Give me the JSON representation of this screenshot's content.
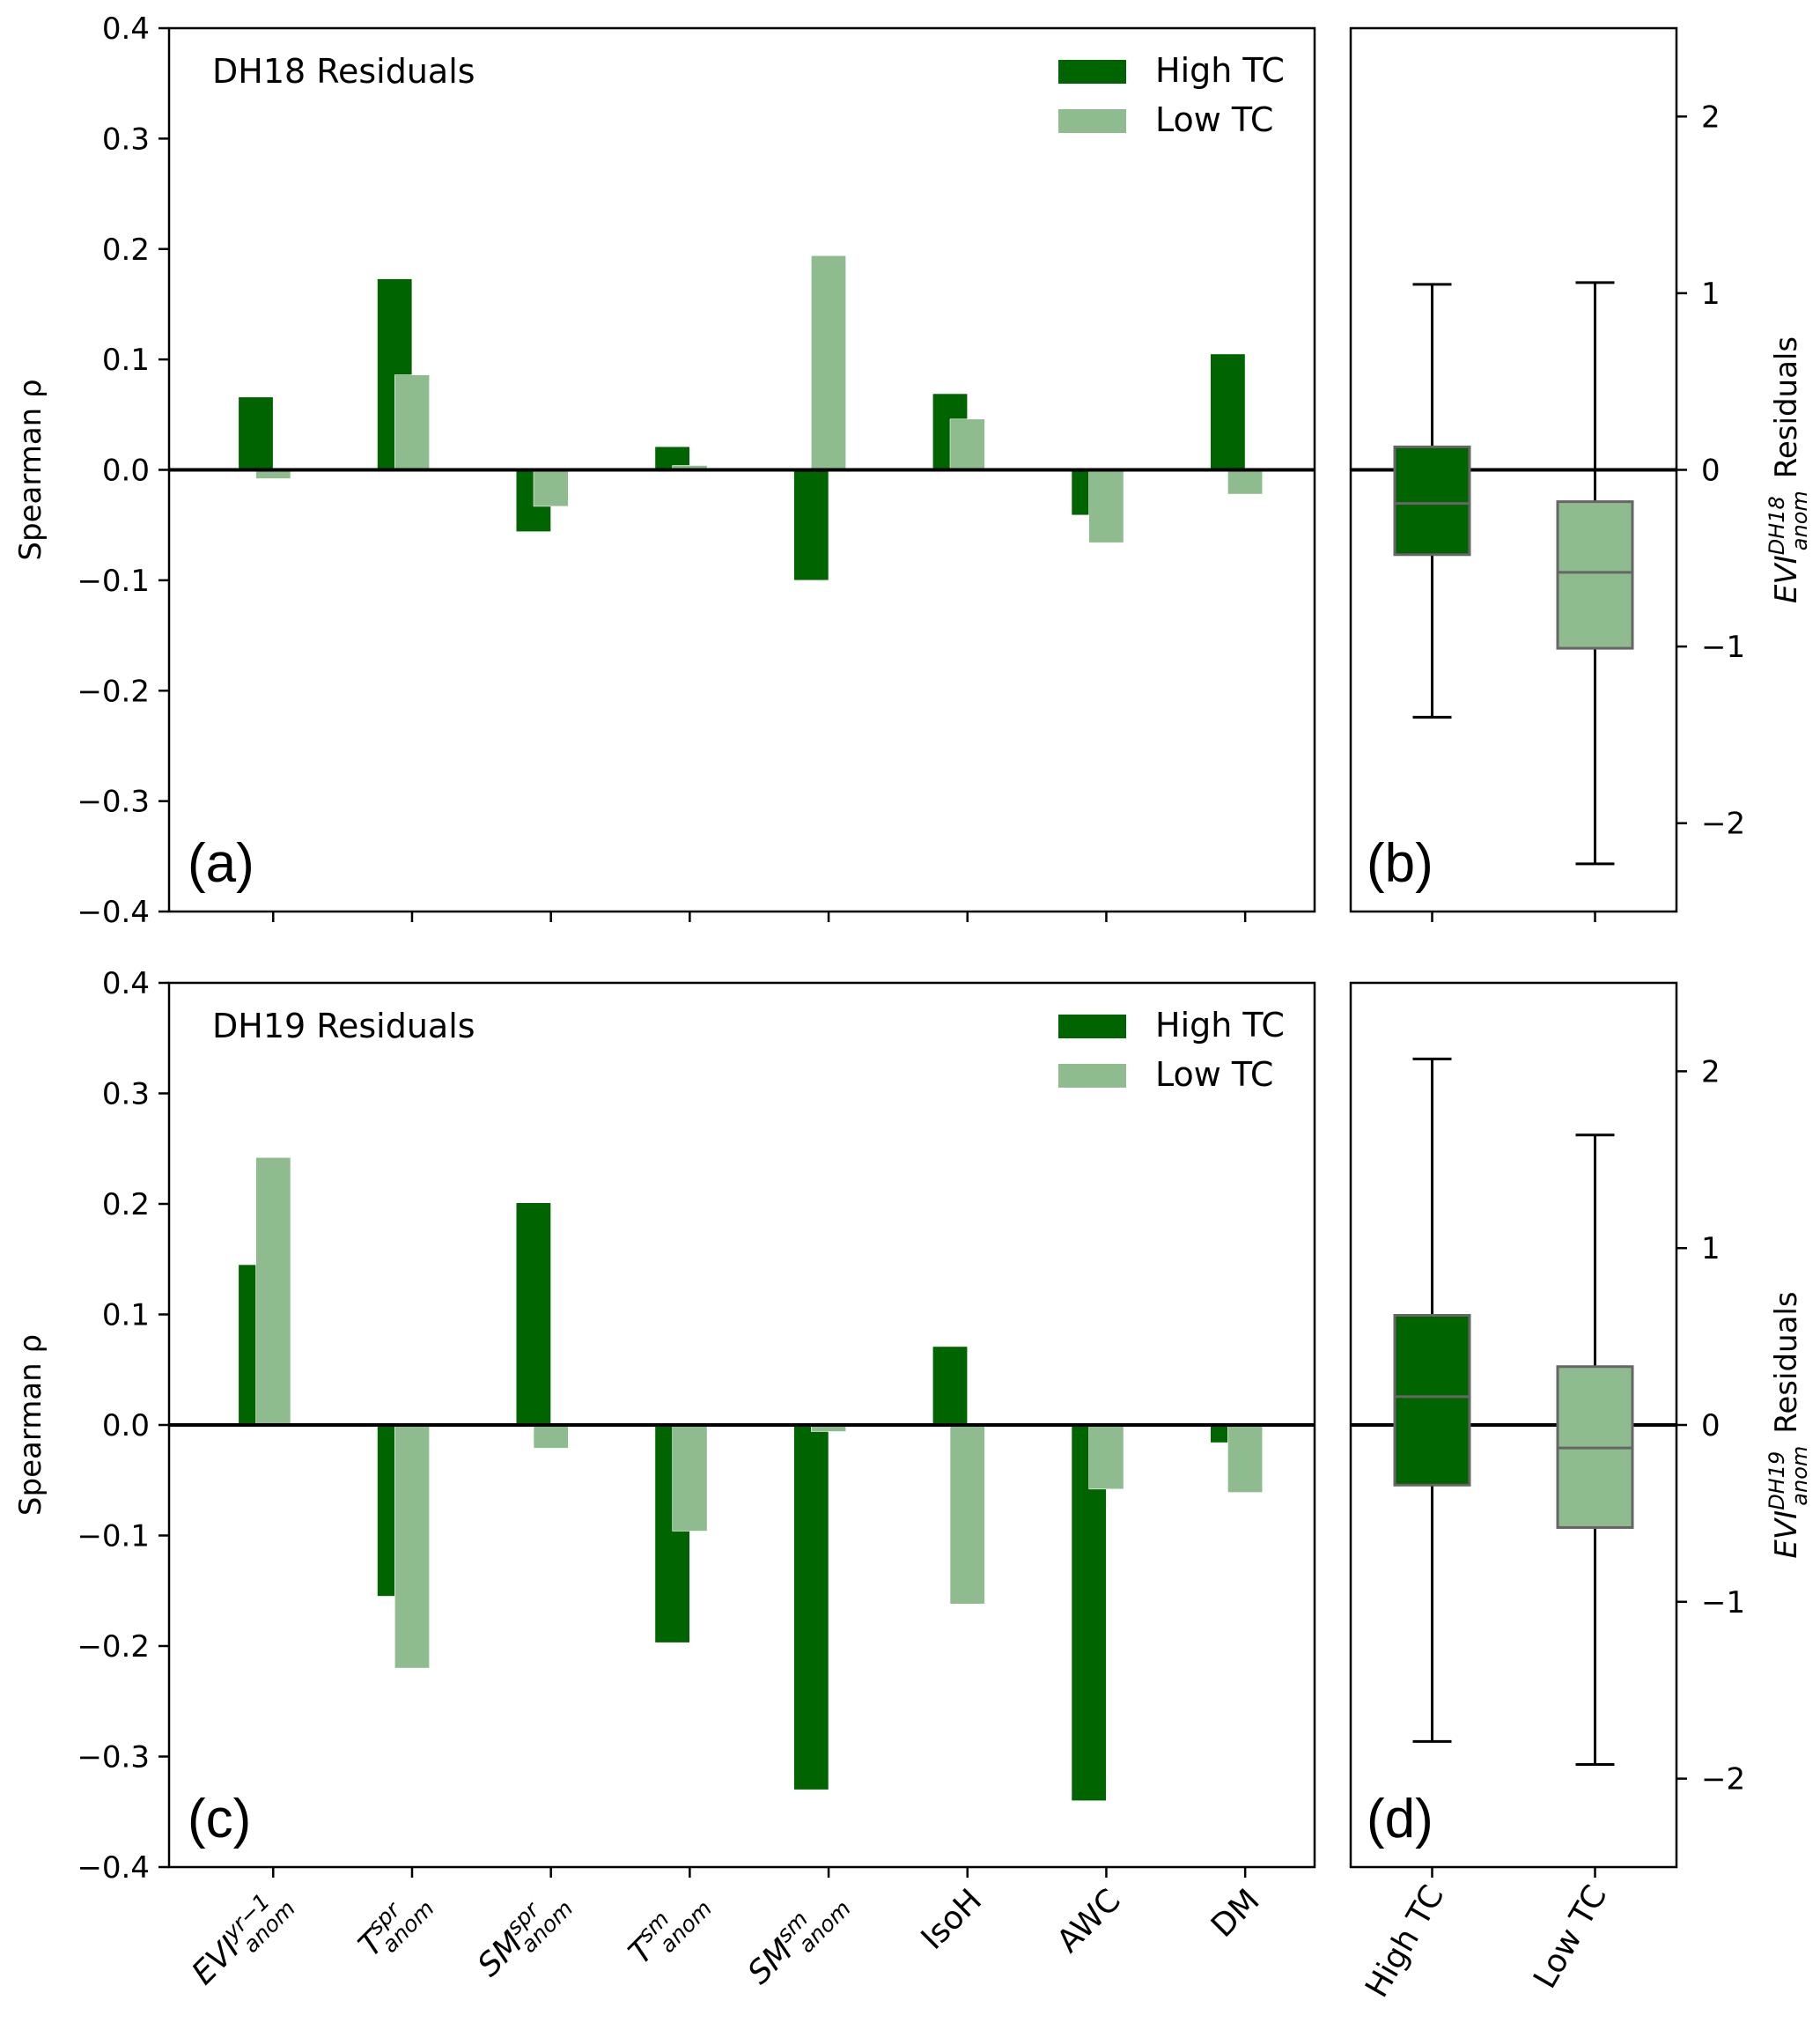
{
  "chart_data": [
    {
      "id": "a",
      "type": "bar",
      "panel_label": "(a)",
      "annotation": "DH18 Residuals",
      "ylabel": "Spearman ρ",
      "ylim": [
        -0.4,
        0.4
      ],
      "yticks": [
        -0.4,
        -0.3,
        -0.2,
        -0.1,
        0.0,
        0.1,
        0.2,
        0.3,
        0.4
      ],
      "ytick_labels": [
        "−0.4",
        "−0.3",
        "−0.2",
        "−0.1",
        "0.0",
        "0.1",
        "0.2",
        "0.3",
        "0.4"
      ],
      "categories": [
        "EVI_anom^yr−1",
        "T_anom^spr",
        "SM_anom^spr",
        "T_anom^sm",
        "SM_anom^sm",
        "IsoH",
        "AWC",
        "DM"
      ],
      "series": [
        {
          "name": "High TC",
          "color": "#006400",
          "values": [
            0.066,
            0.173,
            -0.056,
            0.021,
            -0.1,
            0.069,
            -0.041,
            0.105
          ]
        },
        {
          "name": "Low TC",
          "color": "#8fbc8f",
          "values": [
            -0.008,
            0.086,
            -0.033,
            0.004,
            0.194,
            0.046,
            -0.066,
            -0.022
          ]
        }
      ],
      "legend": {
        "position": "top-right",
        "entries": [
          "High TC",
          "Low TC"
        ]
      },
      "zero_line": true,
      "grid": false
    },
    {
      "id": "b",
      "type": "box",
      "panel_label": "(b)",
      "ylabel_main": "EVI",
      "ylabel_sup": "DH18",
      "ylabel_sub": "anom",
      "ylabel_tail": "Residuals",
      "ylim": [
        -2.5,
        2.5
      ],
      "yticks": [
        -2,
        -1,
        0,
        1,
        2
      ],
      "ytick_labels": [
        "−2",
        "−1",
        "0",
        "1",
        "2"
      ],
      "categories": [
        "High TC",
        "Low TC"
      ],
      "boxes": [
        {
          "name": "High TC",
          "color": "#006400",
          "whisker_low": -1.4,
          "q1": -0.48,
          "median": -0.19,
          "q3": 0.13,
          "whisker_high": 1.05
        },
        {
          "name": "Low TC",
          "color": "#8fbc8f",
          "whisker_low": -2.23,
          "q1": -1.01,
          "median": -0.58,
          "q3": -0.18,
          "whisker_high": 1.06
        }
      ],
      "zero_line": true
    },
    {
      "id": "c",
      "type": "bar",
      "panel_label": "(c)",
      "annotation": "DH19 Residuals",
      "ylabel": "Spearman ρ",
      "ylim": [
        -0.4,
        0.4
      ],
      "yticks": [
        -0.4,
        -0.3,
        -0.2,
        -0.1,
        0.0,
        0.1,
        0.2,
        0.3,
        0.4
      ],
      "ytick_labels": [
        "−0.4",
        "−0.3",
        "−0.2",
        "−0.1",
        "0.0",
        "0.1",
        "0.2",
        "0.3",
        "0.4"
      ],
      "categories": [
        "EVI_anom^yr−1",
        "T_anom^spr",
        "SM_anom^spr",
        "T_anom^sm",
        "SM_anom^sm",
        "IsoH",
        "AWC",
        "DM"
      ],
      "series": [
        {
          "name": "High TC",
          "color": "#006400",
          "values": [
            0.145,
            -0.155,
            0.201,
            -0.197,
            -0.33,
            0.071,
            -0.34,
            -0.016
          ]
        },
        {
          "name": "Low TC",
          "color": "#8fbc8f",
          "values": [
            0.242,
            -0.22,
            -0.021,
            -0.096,
            -0.006,
            -0.162,
            -0.058,
            -0.061
          ]
        }
      ],
      "legend": {
        "position": "top-right",
        "entries": [
          "High TC",
          "Low TC"
        ]
      },
      "zero_line": true,
      "grid": false
    },
    {
      "id": "d",
      "type": "box",
      "panel_label": "(d)",
      "ylabel_main": "EVI",
      "ylabel_sup": "DH19",
      "ylabel_sub": "anom",
      "ylabel_tail": "Residuals",
      "ylim": [
        -2.5,
        2.5
      ],
      "yticks": [
        -2,
        -1,
        0,
        1,
        2
      ],
      "ytick_labels": [
        "−2",
        "−1",
        "0",
        "1",
        "2"
      ],
      "categories": [
        "High TC",
        "Low TC"
      ],
      "boxes": [
        {
          "name": "High TC",
          "color": "#006400",
          "whisker_low": -1.79,
          "q1": -0.34,
          "median": 0.16,
          "q3": 0.62,
          "whisker_high": 2.07
        },
        {
          "name": "Low TC",
          "color": "#8fbc8f",
          "whisker_low": -1.92,
          "q1": -0.58,
          "median": -0.13,
          "q3": 0.33,
          "whisker_high": 1.64
        }
      ],
      "zero_line": true
    }
  ],
  "x_tick_labels": [
    {
      "base": "EVI",
      "sup": "yr−1",
      "sub": "anom"
    },
    {
      "base": "T",
      "sup": "spr",
      "sub": "anom"
    },
    {
      "base": "SM",
      "sup": "spr",
      "sub": "anom"
    },
    {
      "base": "T",
      "sup": "sm",
      "sub": "anom"
    },
    {
      "base": "SM",
      "sup": "sm",
      "sub": "anom"
    },
    {
      "base": "IsoH",
      "sup": "",
      "sub": ""
    },
    {
      "base": "AWC",
      "sup": "",
      "sub": ""
    },
    {
      "base": "DM",
      "sup": "",
      "sub": ""
    }
  ],
  "box_x_tick_labels": [
    "High TC",
    "Low TC"
  ],
  "colors": {
    "high_tc": "#006400",
    "low_tc": "#8fbc8f",
    "box_edge": "#666666",
    "axis": "#000000"
  }
}
